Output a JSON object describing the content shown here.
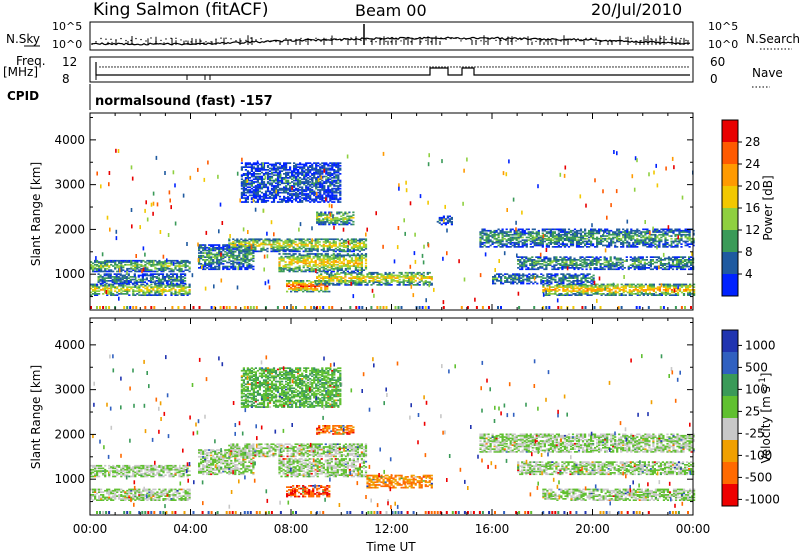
{
  "header": {
    "station": "King Salmon (fitACF)",
    "beam": "Beam 00",
    "date": "20/Jul/2010"
  },
  "strips": {
    "nsky_label": "N.Sky",
    "nsky_ticks": [
      "10^5",
      "10^0"
    ],
    "nsearch_label": "N.Search",
    "nsearch_ticks": [
      "10^5",
      "10^0"
    ],
    "freq_label_1": "Freq.",
    "freq_label_2": "[MHz]",
    "freq_ticks": [
      "12",
      "8"
    ],
    "nave_label": "Nave",
    "nave_ticks": [
      "60",
      "0"
    ],
    "cpid_label": "CPID",
    "cpid_text": "normalsound (fast) -157"
  },
  "chart_data": [
    {
      "type": "heatmap",
      "name": "power-panel",
      "ylabel": "Slant Range [km]",
      "yticks": [
        1000,
        2000,
        3000,
        4000
      ],
      "ylim": [
        200,
        4600
      ],
      "xlim": [
        0,
        24
      ],
      "colorbar": {
        "label": "Power [dB]",
        "ticks": [
          "28",
          "24",
          "20",
          "16",
          "12",
          "8",
          "4"
        ],
        "colors": [
          "#e80000",
          "#ff5a00",
          "#ff9a00",
          "#f2c800",
          "#8fd040",
          "#3a9a58",
          "#1f5aa0",
          "#0022ff"
        ]
      },
      "echo_regions": [
        {
          "t0": 0.0,
          "t1": 4.0,
          "r0": 1050,
          "r1": 1300,
          "level": 0.45
        },
        {
          "t0": 0.0,
          "t1": 4.0,
          "r0": 520,
          "r1": 780,
          "level": 0.6
        },
        {
          "t0": 0.3,
          "t1": 3.8,
          "r0": 780,
          "r1": 1000,
          "level": 0.3
        },
        {
          "t0": 4.3,
          "t1": 6.5,
          "r0": 1100,
          "r1": 1650,
          "level": 0.35
        },
        {
          "t0": 5.5,
          "t1": 11.0,
          "r0": 1500,
          "r1": 1800,
          "level": 0.55
        },
        {
          "t0": 7.5,
          "t1": 11.0,
          "r0": 1050,
          "r1": 1450,
          "level": 0.65
        },
        {
          "t0": 7.8,
          "t1": 9.5,
          "r0": 600,
          "r1": 850,
          "level": 0.9
        },
        {
          "t0": 9.0,
          "t1": 13.6,
          "r0": 750,
          "r1": 1050,
          "level": 0.6
        },
        {
          "t0": 6.0,
          "t1": 10.0,
          "r0": 2600,
          "r1": 3500,
          "level": 0.2
        },
        {
          "t0": 9.0,
          "t1": 10.5,
          "r0": 2100,
          "r1": 2400,
          "level": 0.5
        },
        {
          "t0": 13.8,
          "t1": 14.4,
          "r0": 2100,
          "r1": 2300,
          "level": 0.2
        },
        {
          "t0": 15.5,
          "t1": 24.0,
          "r0": 1600,
          "r1": 2000,
          "level": 0.35
        },
        {
          "t0": 17.0,
          "t1": 24.0,
          "r0": 1100,
          "r1": 1400,
          "level": 0.35
        },
        {
          "t0": 18.0,
          "t1": 24.0,
          "r0": 520,
          "r1": 780,
          "level": 0.7
        },
        {
          "t0": 16.0,
          "t1": 20.0,
          "r0": 780,
          "r1": 1000,
          "level": 0.3
        }
      ]
    },
    {
      "type": "heatmap",
      "name": "velocity-panel",
      "ylabel": "Slant Range [km]",
      "yticks": [
        1000,
        2000,
        3000,
        4000
      ],
      "ylim": [
        200,
        4600
      ],
      "xlim": [
        0,
        24
      ],
      "colorbar": {
        "label": "Velocity [m s^-1]",
        "ticks": [
          "1000",
          "500",
          "100",
          "25",
          "-25",
          "-100",
          "-500",
          "-1000"
        ],
        "colors": [
          "#2034b0",
          "#3060c0",
          "#3a9a58",
          "#60c030",
          "#c8c8c8",
          "#f0a000",
          "#ff6a00",
          "#ee0000"
        ]
      },
      "echo_regions": [
        {
          "t0": 0.0,
          "t1": 4.0,
          "r0": 1050,
          "r1": 1300,
          "level": 0.5
        },
        {
          "t0": 0.0,
          "t1": 4.0,
          "r0": 520,
          "r1": 780,
          "level": 0.5
        },
        {
          "t0": 4.3,
          "t1": 6.5,
          "r0": 1100,
          "r1": 1650,
          "level": 0.5
        },
        {
          "t0": 5.5,
          "t1": 11.0,
          "r0": 1500,
          "r1": 1800,
          "level": 0.5
        },
        {
          "t0": 7.5,
          "t1": 11.0,
          "r0": 1050,
          "r1": 1450,
          "level": 0.5
        },
        {
          "t0": 7.8,
          "t1": 9.5,
          "r0": 600,
          "r1": 850,
          "level": 0.85
        },
        {
          "t0": 11.0,
          "t1": 13.6,
          "r0": 800,
          "r1": 1100,
          "level": 0.75
        },
        {
          "t0": 9.0,
          "t1": 10.5,
          "r0": 2000,
          "r1": 2200,
          "level": 0.8
        },
        {
          "t0": 6.0,
          "t1": 10.0,
          "r0": 2600,
          "r1": 3500,
          "level": 0.4
        },
        {
          "t0": 15.5,
          "t1": 24.0,
          "r0": 1600,
          "r1": 2000,
          "level": 0.5
        },
        {
          "t0": 17.0,
          "t1": 24.0,
          "r0": 1100,
          "r1": 1400,
          "level": 0.5
        },
        {
          "t0": 18.0,
          "t1": 24.0,
          "r0": 520,
          "r1": 780,
          "level": 0.5
        }
      ]
    }
  ],
  "x_axis": {
    "ticks": [
      "00:00",
      "04:00",
      "08:00",
      "12:00",
      "16:00",
      "20:00",
      "00:00"
    ],
    "label": "Time UT"
  }
}
